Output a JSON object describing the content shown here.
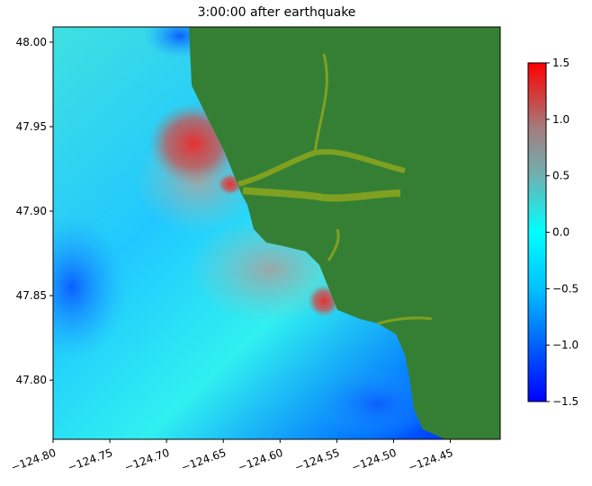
{
  "chart_data": {
    "type": "heatmap",
    "title": "3:00:00 after earthquake",
    "xlabel": "",
    "ylabel": "",
    "xlim": [
      -124.8,
      -124.406
    ],
    "ylim": [
      47.765,
      48.009
    ],
    "xticks": [
      -124.8,
      -124.75,
      -124.7,
      -124.65,
      -124.6,
      -124.55,
      -124.5,
      -124.45
    ],
    "xtick_labels": [
      "−124.80",
      "−124.75",
      "−124.70",
      "−124.65",
      "−124.60",
      "−124.55",
      "−124.50",
      "−124.45"
    ],
    "yticks": [
      47.8,
      47.85,
      47.9,
      47.95,
      48.0
    ],
    "ytick_labels": [
      "47.80",
      "47.85",
      "47.90",
      "47.95",
      "48.00"
    ],
    "colorbar": {
      "range": [
        -1.5,
        1.5
      ],
      "ticks": [
        -1.5,
        -1.0,
        -0.5,
        0.0,
        0.5,
        1.0,
        1.5
      ],
      "tick_labels": [
        "−1.5",
        "−1.0",
        "−0.5",
        "0.0",
        "0.5",
        "1.0",
        "1.5"
      ],
      "colors": [
        "#0000ff",
        "#00ffff",
        "#888888",
        "#ff0000"
      ]
    },
    "land_color": "#357f35",
    "shallow_color": "#7fa020",
    "grid": false
  }
}
